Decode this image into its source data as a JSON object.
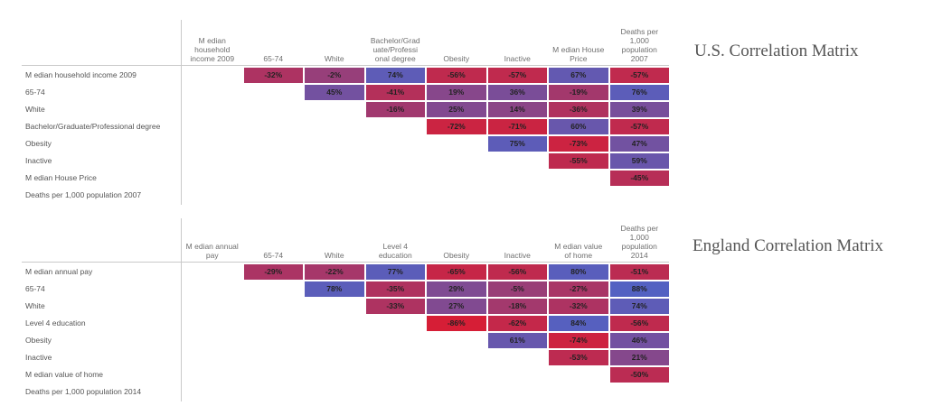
{
  "chart_data": [
    {
      "type": "heatmap",
      "title": "U.S. Correlation Matrix",
      "columns": [
        "Median household income 2009",
        "65-74",
        "White",
        "Bachelor/Graduate/Professional degree",
        "Obesity",
        "Inactive",
        "Median House Price",
        "Deaths per 1,000 population 2007"
      ],
      "rows": [
        "Median household income 2009",
        "65-74",
        "White",
        "Bachelor/Graduate/Professional degree",
        "Obesity",
        "Inactive",
        "Median House Price",
        "Deaths per 1,000 population 2007"
      ],
      "cells": [
        {
          "row": 0,
          "col": 1,
          "value": -32
        },
        {
          "row": 0,
          "col": 2,
          "value": -2
        },
        {
          "row": 0,
          "col": 3,
          "value": 74
        },
        {
          "row": 0,
          "col": 4,
          "value": -56
        },
        {
          "row": 0,
          "col": 5,
          "value": -57
        },
        {
          "row": 0,
          "col": 6,
          "value": 67
        },
        {
          "row": 0,
          "col": 7,
          "value": -57
        },
        {
          "row": 1,
          "col": 2,
          "value": 45
        },
        {
          "row": 1,
          "col": 3,
          "value": -41
        },
        {
          "row": 1,
          "col": 4,
          "value": 19
        },
        {
          "row": 1,
          "col": 5,
          "value": 36
        },
        {
          "row": 1,
          "col": 6,
          "value": -19
        },
        {
          "row": 1,
          "col": 7,
          "value": 76
        },
        {
          "row": 2,
          "col": 3,
          "value": -16
        },
        {
          "row": 2,
          "col": 4,
          "value": 25
        },
        {
          "row": 2,
          "col": 5,
          "value": 14
        },
        {
          "row": 2,
          "col": 6,
          "value": -36
        },
        {
          "row": 2,
          "col": 7,
          "value": 39
        },
        {
          "row": 3,
          "col": 4,
          "value": -72
        },
        {
          "row": 3,
          "col": 5,
          "value": -71
        },
        {
          "row": 3,
          "col": 6,
          "value": 60
        },
        {
          "row": 3,
          "col": 7,
          "value": -57
        },
        {
          "row": 4,
          "col": 5,
          "value": 75
        },
        {
          "row": 4,
          "col": 6,
          "value": -73
        },
        {
          "row": 4,
          "col": 7,
          "value": 47
        },
        {
          "row": 5,
          "col": 6,
          "value": -55
        },
        {
          "row": 5,
          "col": 7,
          "value": 59
        },
        {
          "row": 6,
          "col": 7,
          "value": -45
        }
      ]
    },
    {
      "type": "heatmap",
      "title": "England Correlation Matrix",
      "columns": [
        "Median annual pay",
        "65-74",
        "White",
        "Level 4 education",
        "Obesity",
        "Inactive",
        "Median value of home",
        "Deaths per 1,000 population 2014"
      ],
      "rows": [
        "Median annual pay",
        "65-74",
        "White",
        "Level 4 education",
        "Obesity",
        "Inactive",
        "Median value of home",
        "Deaths per 1,000 population 2014"
      ],
      "cells": [
        {
          "row": 0,
          "col": 1,
          "value": -29
        },
        {
          "row": 0,
          "col": 2,
          "value": -22
        },
        {
          "row": 0,
          "col": 3,
          "value": 77
        },
        {
          "row": 0,
          "col": 4,
          "value": -65
        },
        {
          "row": 0,
          "col": 5,
          "value": -56
        },
        {
          "row": 0,
          "col": 6,
          "value": 80
        },
        {
          "row": 0,
          "col": 7,
          "value": -51
        },
        {
          "row": 1,
          "col": 2,
          "value": 78
        },
        {
          "row": 1,
          "col": 3,
          "value": -35
        },
        {
          "row": 1,
          "col": 4,
          "value": 29
        },
        {
          "row": 1,
          "col": 5,
          "value": -5
        },
        {
          "row": 1,
          "col": 6,
          "value": -27
        },
        {
          "row": 1,
          "col": 7,
          "value": 88
        },
        {
          "row": 2,
          "col": 3,
          "value": -33
        },
        {
          "row": 2,
          "col": 4,
          "value": 27
        },
        {
          "row": 2,
          "col": 5,
          "value": -18
        },
        {
          "row": 2,
          "col": 6,
          "value": -32
        },
        {
          "row": 2,
          "col": 7,
          "value": 74
        },
        {
          "row": 3,
          "col": 4,
          "value": -86
        },
        {
          "row": 3,
          "col": 5,
          "value": -62
        },
        {
          "row": 3,
          "col": 6,
          "value": 84
        },
        {
          "row": 3,
          "col": 7,
          "value": -56
        },
        {
          "row": 4,
          "col": 5,
          "value": 61
        },
        {
          "row": 4,
          "col": 6,
          "value": -74
        },
        {
          "row": 4,
          "col": 7,
          "value": 46
        },
        {
          "row": 5,
          "col": 6,
          "value": -53
        },
        {
          "row": 5,
          "col": 7,
          "value": 21
        },
        {
          "row": 6,
          "col": 7,
          "value": -50
        }
      ]
    }
  ],
  "header_display": [
    [
      "M edian household income 2009",
      "65-74",
      "White",
      "Bachelor/Grad uate/Professi onal degree",
      "Obesity",
      "Inactive",
      "M edian House Price",
      "Deaths per 1,000 population 2007"
    ],
    [
      "M edian annual pay",
      "65-74",
      "White",
      "Level 4 education",
      "Obesity",
      "Inactive",
      "M edian value of home",
      "Deaths per 1,000 population 2014"
    ]
  ],
  "row_display": [
    [
      "M edian household income 2009",
      "65-74",
      "White",
      "Bachelor/Graduate/Professional degree",
      "Obesity",
      "Inactive",
      "M edian House Price",
      "Deaths per 1,000 population 2007"
    ],
    [
      "M edian annual pay",
      "65-74",
      "White",
      "Level 4 education",
      "Obesity",
      "Inactive",
      "M edian value of home",
      "Deaths per 1,000 population 2014"
    ]
  ],
  "colors": {
    "positive": "#4a66cc",
    "negative": "#e0192b",
    "text": "#222222"
  }
}
